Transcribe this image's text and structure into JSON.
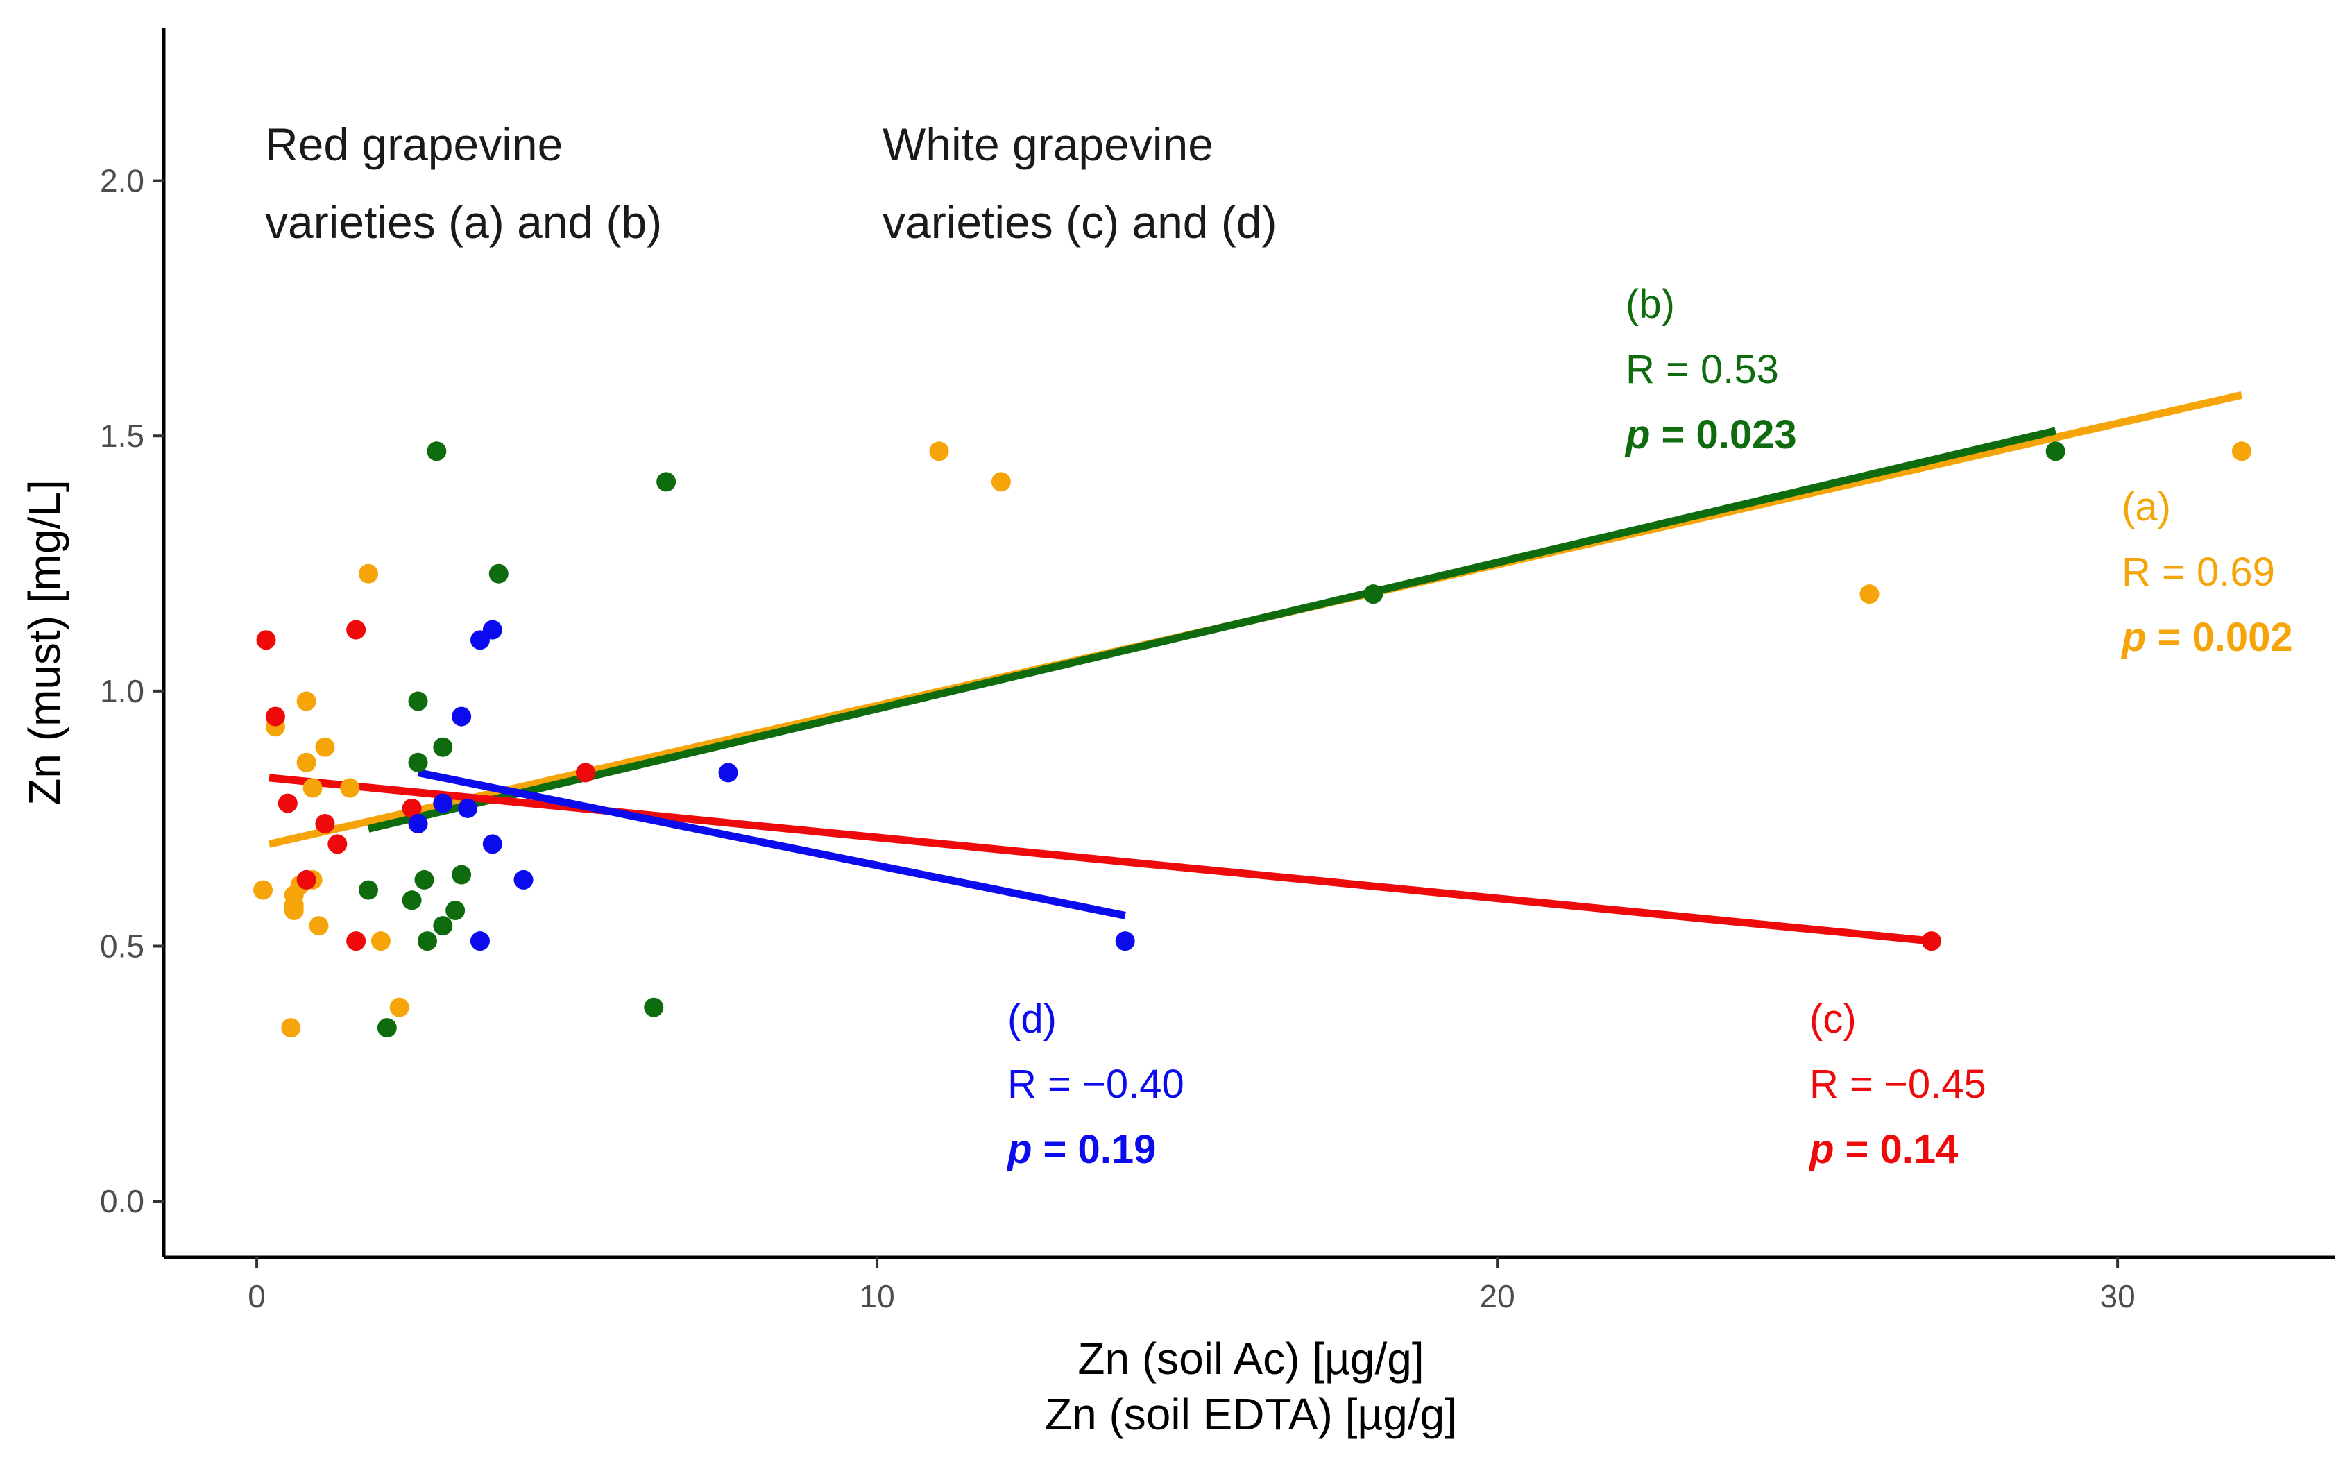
{
  "chart_data": {
    "type": "scatter",
    "title": "",
    "xlabel": "Zn (soil Ac) [µg/g]",
    "xlabel2": "Zn (soil EDTA) [µg/g]",
    "ylabel": "Zn (must) [mg/L]",
    "xlim": [
      -1.5,
      33.5
    ],
    "ylim": [
      -0.11,
      2.3
    ],
    "x_ticks": [
      0,
      10,
      20,
      30
    ],
    "x_tick_labels": [
      "0",
      "10",
      "20",
      "30"
    ],
    "y_ticks": [
      0.0,
      0.5,
      1.0,
      1.5,
      2.0
    ],
    "y_tick_labels": [
      "0.0",
      "0.5",
      "1.0",
      "1.5",
      "2.0"
    ],
    "grid": false,
    "group_labels": {
      "red_line1": "Red grapevine",
      "red_line2": "varieties (a) and (b)",
      "white_line1": "White grapevine",
      "white_line2": "varieties (c) and (d)"
    },
    "series": [
      {
        "name": "(a)",
        "color": "#F5A50A",
        "r_text": "R = 0.69",
        "p_prefix": "p",
        "p_value": " = 0.002",
        "fit": {
          "x0": 0.2,
          "y0": 0.7,
          "x1": 32.0,
          "y1": 1.58
        },
        "points": [
          [
            0.1,
            0.61
          ],
          [
            0.3,
            0.93
          ],
          [
            0.6,
            0.58
          ],
          [
            0.6,
            0.6
          ],
          [
            0.7,
            0.62
          ],
          [
            0.8,
            0.98
          ],
          [
            0.8,
            0.86
          ],
          [
            0.9,
            0.63
          ],
          [
            0.9,
            0.81
          ],
          [
            1.0,
            0.54
          ],
          [
            1.1,
            0.89
          ],
          [
            1.5,
            0.81
          ],
          [
            1.8,
            1.23
          ],
          [
            2.0,
            0.51
          ],
          [
            2.3,
            0.38
          ],
          [
            0.55,
            0.34
          ],
          [
            0.6,
            0.57
          ],
          [
            11.0,
            1.47
          ],
          [
            12.0,
            1.41
          ],
          [
            26.0,
            1.19
          ],
          [
            32.0,
            1.47
          ]
        ]
      },
      {
        "name": "(b)",
        "color": "#0E6B0E",
        "r_text": "R = 0.53",
        "p_prefix": "p",
        "p_value": " = 0.023",
        "fit": {
          "x0": 1.8,
          "y0": 0.73,
          "x1": 29.0,
          "y1": 1.51
        },
        "points": [
          [
            1.8,
            0.61
          ],
          [
            2.1,
            0.34
          ],
          [
            2.5,
            0.59
          ],
          [
            2.6,
            0.98
          ],
          [
            2.6,
            0.86
          ],
          [
            2.7,
            0.63
          ],
          [
            2.75,
            0.51
          ],
          [
            2.9,
            1.47
          ],
          [
            3.0,
            0.89
          ],
          [
            3.0,
            0.54
          ],
          [
            3.2,
            0.57
          ],
          [
            3.3,
            0.64
          ],
          [
            3.9,
            1.23
          ],
          [
            6.4,
            0.38
          ],
          [
            6.6,
            1.41
          ],
          [
            18.0,
            1.19
          ],
          [
            29.0,
            1.47
          ]
        ]
      },
      {
        "name": "(c)",
        "color": "#EE0A0A",
        "r_text": "R = −0.45",
        "p_prefix": "p",
        "p_value": " = 0.14",
        "fit": {
          "x0": 0.2,
          "y0": 0.83,
          "x1": 27.0,
          "y1": 0.51
        },
        "points": [
          [
            0.15,
            1.1
          ],
          [
            0.3,
            0.95
          ],
          [
            0.5,
            0.78
          ],
          [
            0.8,
            0.63
          ],
          [
            1.1,
            0.74
          ],
          [
            1.3,
            0.7
          ],
          [
            1.6,
            1.12
          ],
          [
            1.6,
            0.51
          ],
          [
            2.5,
            0.77
          ],
          [
            5.3,
            0.84
          ],
          [
            27.0,
            0.51
          ]
        ]
      },
      {
        "name": "(d)",
        "color": "#0B0BEE",
        "r_text": "R = −0.40",
        "p_prefix": "p",
        "p_value": " = 0.19",
        "fit": {
          "x0": 2.6,
          "y0": 0.84,
          "x1": 14.0,
          "y1": 0.56
        },
        "points": [
          [
            2.6,
            0.74
          ],
          [
            3.0,
            0.78
          ],
          [
            3.3,
            0.95
          ],
          [
            3.4,
            0.77
          ],
          [
            3.6,
            1.1
          ],
          [
            3.6,
            0.51
          ],
          [
            3.8,
            1.12
          ],
          [
            3.8,
            0.7
          ],
          [
            4.3,
            0.63
          ],
          [
            7.6,
            0.84
          ],
          [
            14.0,
            0.51
          ]
        ]
      }
    ]
  }
}
